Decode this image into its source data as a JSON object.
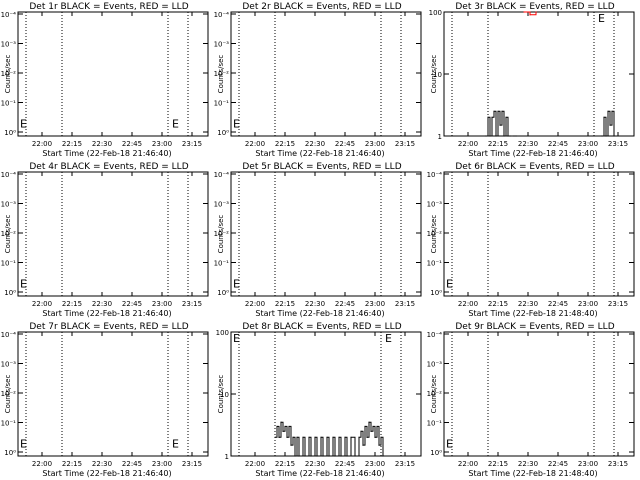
{
  "colors": {
    "events": "#000000",
    "lld": "#ff0000",
    "axes": "#000000",
    "background": "#ffffff"
  },
  "chart_data": [
    {
      "type": "line",
      "title": "Det 1r BLACK = Events, RED = LLD",
      "ylabel": "Counts/sec",
      "xlabel": "Start Time (22-Feb-18 21:46:40)",
      "y_scale": "log",
      "ylim": [
        0.5,
        0.0001
      ],
      "y_ticks": [
        "10⁰",
        "10⁻¹",
        "10⁻²",
        "10⁻³",
        "10⁻⁴"
      ],
      "x_ticks": [
        "22:00",
        "22:15",
        "22:30",
        "22:45",
        "23:00",
        "23:15"
      ],
      "markers": [
        "E",
        "E"
      ],
      "series": []
    },
    {
      "type": "line",
      "title": "Det 2r BLACK = Events, RED = LLD",
      "ylabel": "Counts/sec",
      "xlabel": "Start Time (22-Feb-18 21:46:40)",
      "y_scale": "log",
      "ylim": [
        0.5,
        0.0001
      ],
      "y_ticks": [
        "10⁰",
        "10⁻¹",
        "10⁻²",
        "10⁻³",
        "10⁻⁴"
      ],
      "x_ticks": [
        "22:00",
        "22:15",
        "22:30",
        "22:45",
        "23:00",
        "23:15"
      ],
      "markers": [
        "E"
      ],
      "series": []
    },
    {
      "type": "line",
      "title": "Det 3r BLACK = Events, RED = LLD",
      "ylabel": "Counts/sec",
      "xlabel": "Start Time (22-Feb-18 21:46:40)",
      "y_scale": "log",
      "ylim": [
        1,
        100
      ],
      "y_ticks": [
        "1",
        "10",
        "100"
      ],
      "x_ticks": [
        "22:00",
        "22:15",
        "22:30",
        "22:45",
        "23:00",
        "23:15"
      ],
      "markers": [
        "E"
      ],
      "series": [
        {
          "kind": "events",
          "points": [
            [
              "22:09",
              1
            ],
            [
              "22:10",
              2
            ],
            [
              "22:11",
              1
            ],
            [
              "22:12",
              2
            ],
            [
              "22:13",
              2.5
            ],
            [
              "22:14",
              1
            ],
            [
              "22:15",
              2.5
            ],
            [
              "22:16",
              1.5
            ],
            [
              "22:17",
              2.5
            ],
            [
              "22:18",
              1
            ],
            [
              "22:19",
              2
            ],
            [
              "22:20",
              1
            ],
            [
              "22:21",
              1
            ],
            [
              "22:23",
              1
            ],
            [
              "22:24",
              1
            ],
            [
              "23:07",
              1
            ],
            [
              "23:08",
              2
            ],
            [
              "23:09",
              1
            ],
            [
              "23:10",
              2.5
            ],
            [
              "23:11",
              1.5
            ],
            [
              "23:12",
              2.5
            ],
            [
              "23:13",
              1
            ]
          ]
        },
        {
          "kind": "lld",
          "points": [
            [
              "22:28",
              100
            ],
            [
              "22:31",
              90
            ],
            [
              "22:34",
              100
            ]
          ]
        }
      ]
    },
    {
      "type": "line",
      "title": "Det 4r BLACK = Events, RED = LLD",
      "ylabel": "Counts/sec",
      "xlabel": "Start Time (22-Feb-18 21:46:40)",
      "y_scale": "log",
      "ylim": [
        0.5,
        0.0001
      ],
      "y_ticks": [
        "10⁰",
        "10⁻¹",
        "10⁻²",
        "10⁻³",
        "10⁻⁴"
      ],
      "x_ticks": [
        "22:00",
        "22:15",
        "22:30",
        "22:45",
        "23:00",
        "23:15"
      ],
      "markers": [
        "E"
      ],
      "series": []
    },
    {
      "type": "line",
      "title": "Det 5r BLACK = Events, RED = LLD",
      "ylabel": "Counts/sec",
      "xlabel": "Start Time (22-Feb-18 21:46:40)",
      "y_scale": "log",
      "ylim": [
        0.5,
        0.0001
      ],
      "y_ticks": [
        "10⁰",
        "10⁻¹",
        "10⁻²",
        "10⁻³",
        "10⁻⁴"
      ],
      "x_ticks": [
        "22:00",
        "22:15",
        "22:30",
        "22:45",
        "23:00",
        "23:15"
      ],
      "markers": [
        "E"
      ],
      "series": []
    },
    {
      "type": "line",
      "title": "Det 6r BLACK = Events, RED = LLD",
      "ylabel": "Counts/sec",
      "xlabel": "Start Time (22-Feb-18 21:48:40)",
      "y_scale": "log",
      "ylim": [
        0.5,
        0.0001
      ],
      "y_ticks": [
        "10⁰",
        "10⁻¹",
        "10⁻²",
        "10⁻³",
        "10⁻⁴"
      ],
      "x_ticks": [
        "22:00",
        "22:15",
        "22:30",
        "22:45",
        "23:00",
        "23:15"
      ],
      "markers": [
        "E"
      ],
      "series": []
    },
    {
      "type": "line",
      "title": "Det 7r BLACK = Events, RED = LLD",
      "ylabel": "Counts/sec",
      "xlabel": "Start Time (22-Feb-18 21:46:40)",
      "y_scale": "log",
      "ylim": [
        0.5,
        0.0001
      ],
      "y_ticks": [
        "10⁰",
        "10⁻¹",
        "10⁻²",
        "10⁻³",
        "10⁻⁴"
      ],
      "x_ticks": [
        "22:00",
        "22:15",
        "22:30",
        "22:45",
        "23:00",
        "23:15"
      ],
      "markers": [
        "E",
        "E"
      ],
      "series": []
    },
    {
      "type": "line",
      "title": "Det 8r BLACK = Events, RED = LLD",
      "ylabel": "Counts/sec",
      "xlabel": "Start Time (22-Feb-18 21:46:40)",
      "y_scale": "log",
      "ylim": [
        1,
        100
      ],
      "y_ticks": [
        "1",
        "10",
        "100"
      ],
      "x_ticks": [
        "22:00",
        "22:15",
        "22:30",
        "22:45",
        "23:00",
        "23:15"
      ],
      "markers": [
        "E",
        "E"
      ],
      "series": [
        {
          "kind": "events",
          "points": [
            [
              "22:10",
              2
            ],
            [
              "22:11",
              3
            ],
            [
              "22:12",
              2
            ],
            [
              "22:13",
              3.5
            ],
            [
              "22:14",
              2.5
            ],
            [
              "22:15",
              3
            ],
            [
              "22:16",
              2
            ],
            [
              "22:17",
              3
            ],
            [
              "22:18",
              1.5
            ],
            [
              "22:19",
              2
            ],
            [
              "22:20",
              1
            ],
            [
              "22:21",
              2
            ],
            [
              "22:22",
              1
            ],
            [
              "22:24",
              2
            ],
            [
              "22:25",
              1
            ],
            [
              "22:27",
              2
            ],
            [
              "22:28",
              1
            ],
            [
              "22:30",
              2
            ],
            [
              "22:31",
              1
            ],
            [
              "22:33",
              2
            ],
            [
              "22:34",
              1
            ],
            [
              "22:36",
              2
            ],
            [
              "22:37",
              1
            ],
            [
              "22:39",
              2
            ],
            [
              "22:40",
              1
            ],
            [
              "22:42",
              2
            ],
            [
              "22:43",
              1
            ],
            [
              "22:45",
              2
            ],
            [
              "22:46",
              1
            ],
            [
              "22:48",
              2
            ],
            [
              "22:50",
              1
            ],
            [
              "22:52",
              2
            ],
            [
              "22:53",
              2.5
            ],
            [
              "22:54",
              1.5
            ],
            [
              "22:55",
              3
            ],
            [
              "22:56",
              2
            ],
            [
              "22:57",
              3.5
            ],
            [
              "22:58",
              2.5
            ],
            [
              "22:59",
              3
            ],
            [
              "23:00",
              2
            ],
            [
              "23:01",
              3
            ],
            [
              "23:02",
              1.5
            ],
            [
              "23:03",
              2
            ],
            [
              "23:04",
              1
            ]
          ]
        }
      ]
    },
    {
      "type": "line",
      "title": "Det 9r BLACK = Events, RED = LLD",
      "ylabel": "Counts/sec",
      "xlabel": "Start Time (22-Feb-18 21:48:40)",
      "y_scale": "log",
      "ylim": [
        0.5,
        0.0001
      ],
      "y_ticks": [
        "10⁰",
        "10⁻¹",
        "10⁻²",
        "10⁻³",
        "10⁻⁴"
      ],
      "x_ticks": [
        "22:00",
        "22:15",
        "22:30",
        "22:45",
        "23:00",
        "23:15"
      ],
      "markers": [
        "E"
      ],
      "series": []
    }
  ]
}
